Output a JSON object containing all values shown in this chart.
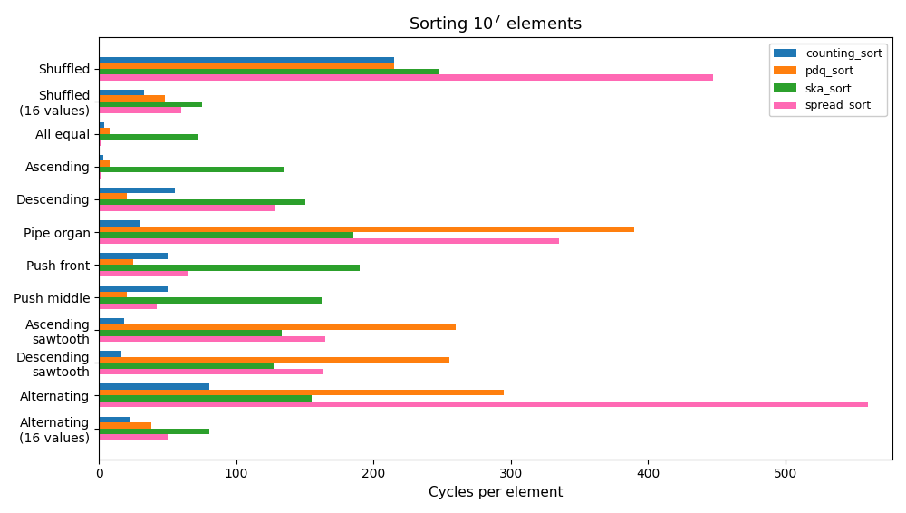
{
  "title": "Sorting $10^7$ elements",
  "xlabel": "Cycles per element",
  "categories": [
    "Shuffled",
    "Shuffled\n(16 values)",
    "All equal",
    "Ascending",
    "Descending",
    "Pipe organ",
    "Push front",
    "Push middle",
    "Ascending\nsawtooth",
    "Descending\nsawtooth",
    "Alternating",
    "Alternating\n(16 values)"
  ],
  "series": [
    {
      "name": "counting_sort",
      "color": "#1f77b4",
      "values": [
        215,
        33,
        4,
        3,
        55,
        30,
        50,
        50,
        18,
        16,
        80,
        22
      ]
    },
    {
      "name": "pdq_sort",
      "color": "#ff7f0e",
      "values": [
        215,
        48,
        8,
        8,
        20,
        390,
        25,
        20,
        260,
        255,
        295,
        38
      ]
    },
    {
      "name": "ska_sort",
      "color": "#2ca02c",
      "values": [
        247,
        75,
        72,
        135,
        150,
        185,
        190,
        162,
        133,
        127,
        155,
        80
      ]
    },
    {
      "name": "spread_sort",
      "color": "#ff69b4",
      "values": [
        447,
        60,
        2,
        2,
        128,
        335,
        65,
        42,
        165,
        163,
        560,
        50
      ]
    }
  ],
  "xlim": [
    0,
    578
  ],
  "figsize": [
    10.0,
    5.66
  ],
  "dpi": 100
}
